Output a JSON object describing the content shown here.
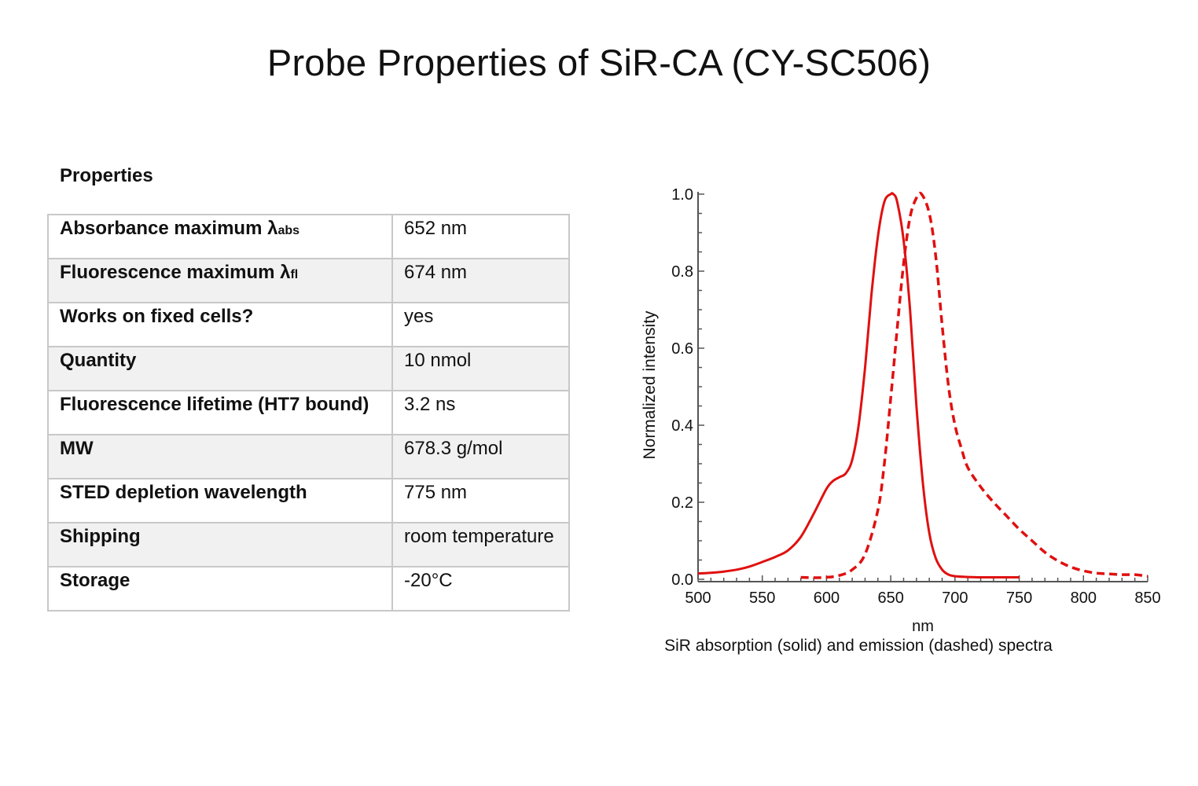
{
  "title": "Probe Properties of SiR-CA (CY-SC506)",
  "properties": {
    "heading": "Properties",
    "rows": [
      {
        "label": "Absorbance maximum λ",
        "sub": "abs",
        "value": "652 nm"
      },
      {
        "label": "Fluorescence maximum λ",
        "sub": "fl",
        "value": "674 nm"
      },
      {
        "label": "Works on fixed cells?",
        "sub": "",
        "value": "yes"
      },
      {
        "label": "Quantity",
        "sub": "",
        "value": "10 nmol"
      },
      {
        "label": "Fluorescence lifetime (HT7 bound)",
        "sub": "",
        "value": "3.2 ns"
      },
      {
        "label": "MW",
        "sub": "",
        "value": "678.3 g/mol"
      },
      {
        "label": "STED depletion wavelength",
        "sub": "",
        "value": "775 nm"
      },
      {
        "label": "Shipping",
        "sub": "",
        "value": "room temperature"
      },
      {
        "label": "Storage",
        "sub": "",
        "value": "-20°C"
      }
    ]
  },
  "chart_data": {
    "type": "line",
    "title": "",
    "caption": "SiR absorption (solid) and emission (dashed) spectra",
    "xlabel": "nm",
    "ylabel": "Normalized  intensity",
    "xlim": [
      500,
      850
    ],
    "ylim": [
      0,
      1.0
    ],
    "xticks": [
      "500",
      "550",
      "600",
      "650",
      "700",
      "750",
      "800",
      "850"
    ],
    "yticks": [
      "0.0",
      "0.2",
      "0.4",
      "0.6",
      "0.8",
      "1.0"
    ],
    "grid": false,
    "legend": "none (described in caption)",
    "color": "#e01010",
    "series": [
      {
        "name": "absorption",
        "style": "solid",
        "x": [
          500,
          510,
          520,
          530,
          540,
          550,
          560,
          570,
          580,
          590,
          600,
          605,
          610,
          615,
          620,
          625,
          630,
          635,
          640,
          645,
          650,
          652,
          655,
          660,
          665,
          670,
          675,
          680,
          685,
          690,
          695,
          700,
          710,
          720,
          730,
          740,
          750
        ],
        "y": [
          0.015,
          0.017,
          0.02,
          0.025,
          0.033,
          0.045,
          0.058,
          0.075,
          0.11,
          0.17,
          0.235,
          0.255,
          0.265,
          0.275,
          0.31,
          0.4,
          0.55,
          0.74,
          0.89,
          0.98,
          1.0,
          1.0,
          0.98,
          0.88,
          0.7,
          0.45,
          0.25,
          0.12,
          0.055,
          0.025,
          0.012,
          0.008,
          0.006,
          0.005,
          0.005,
          0.005,
          0.005
        ]
      },
      {
        "name": "emission",
        "style": "dashed",
        "x": [
          580,
          590,
          600,
          610,
          620,
          630,
          640,
          645,
          650,
          655,
          660,
          665,
          670,
          674,
          680,
          685,
          690,
          695,
          700,
          705,
          710,
          720,
          730,
          740,
          750,
          760,
          770,
          780,
          790,
          800,
          810,
          820,
          830,
          840,
          850
        ],
        "y": [
          0.005,
          0.004,
          0.005,
          0.01,
          0.025,
          0.065,
          0.18,
          0.3,
          0.47,
          0.65,
          0.82,
          0.94,
          0.99,
          1.0,
          0.95,
          0.84,
          0.66,
          0.5,
          0.4,
          0.34,
          0.29,
          0.24,
          0.2,
          0.165,
          0.13,
          0.1,
          0.07,
          0.048,
          0.032,
          0.022,
          0.016,
          0.014,
          0.012,
          0.012,
          0.008
        ]
      }
    ]
  }
}
